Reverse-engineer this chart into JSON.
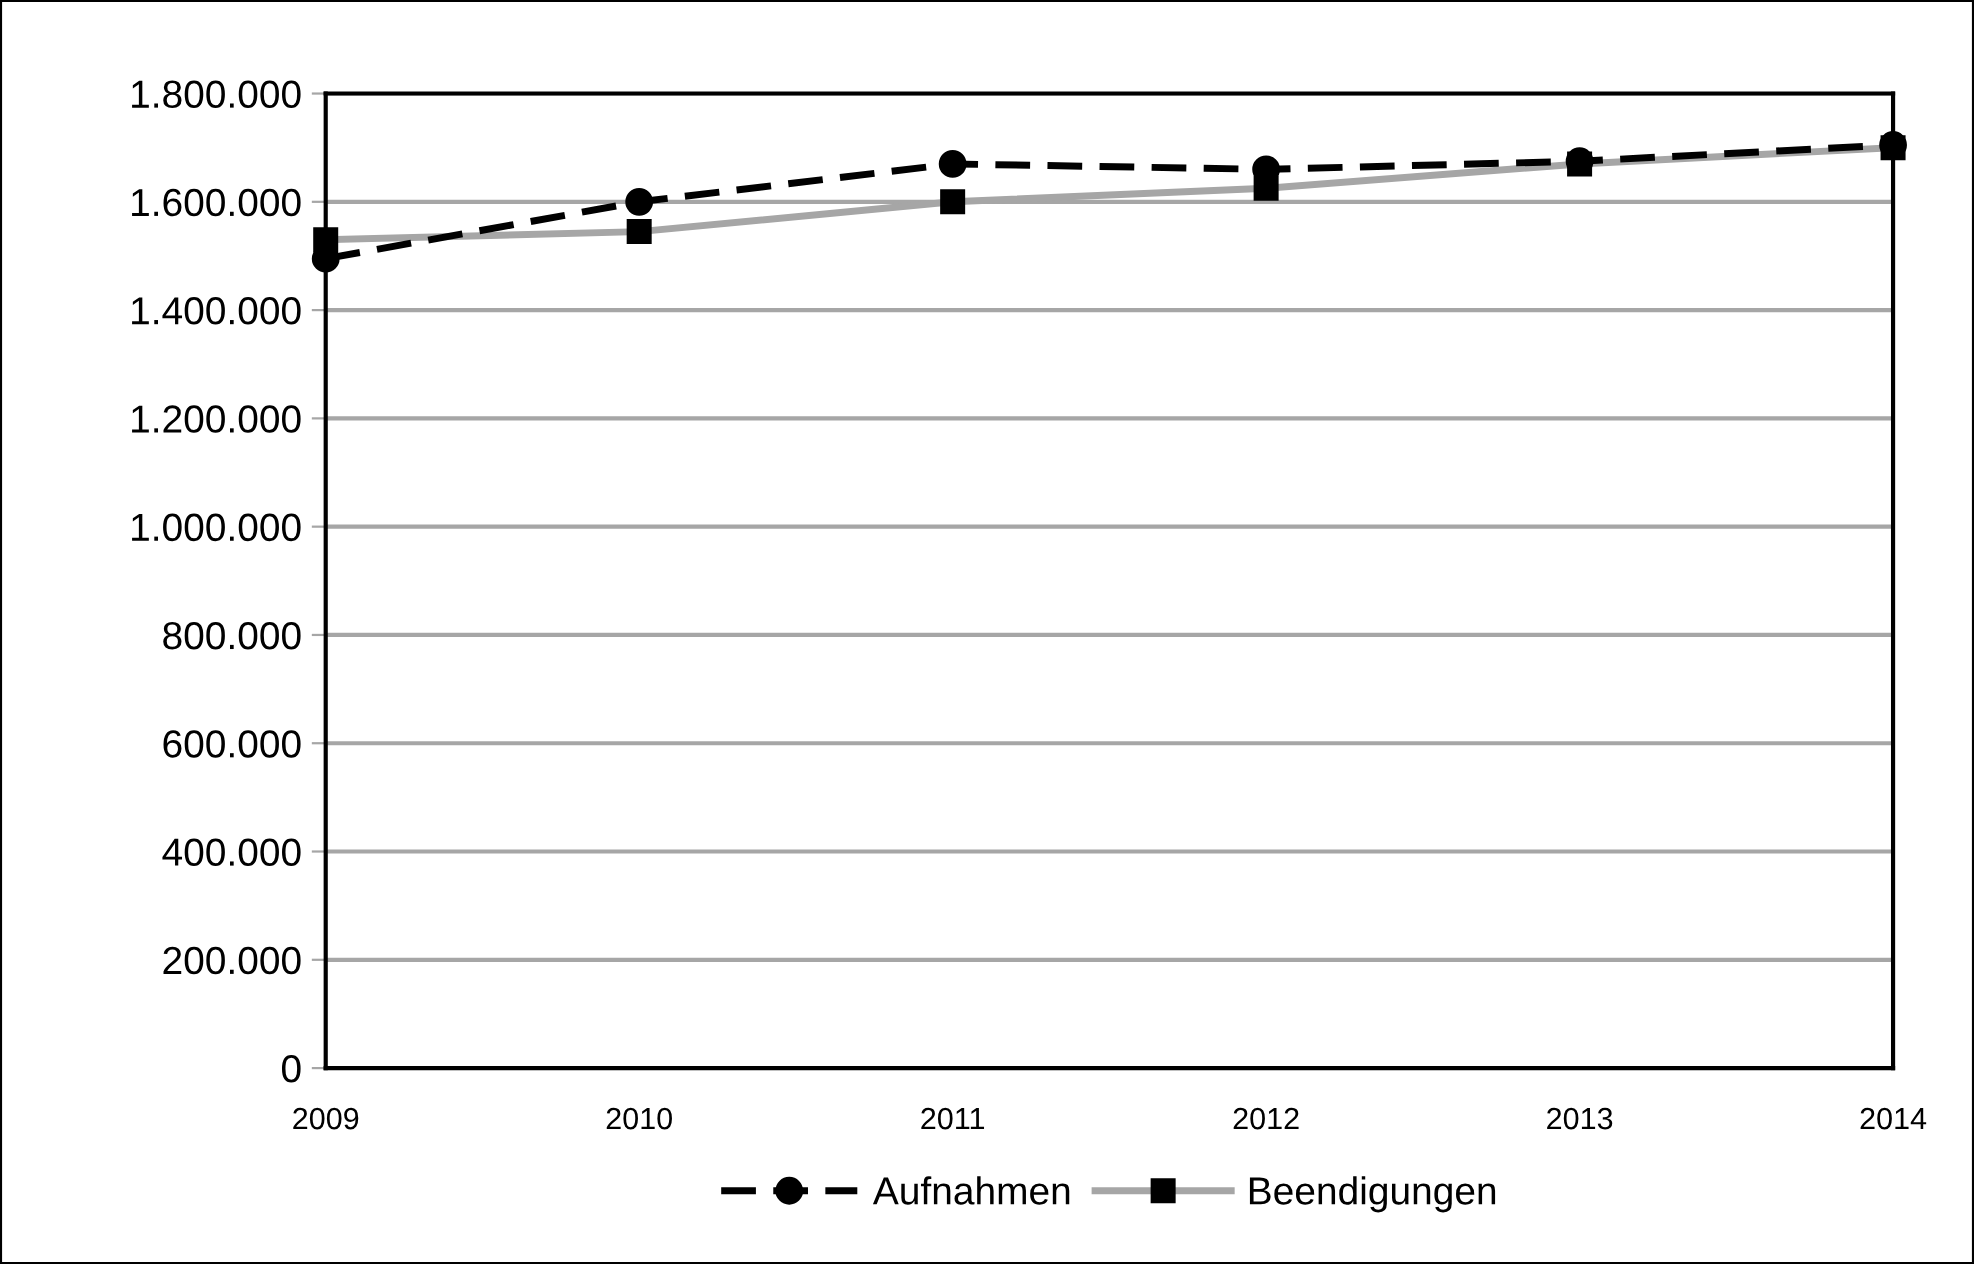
{
  "chart_data": {
    "type": "line",
    "categories": [
      "2009",
      "2010",
      "2011",
      "2012",
      "2013",
      "2014"
    ],
    "series": [
      {
        "name": "Aufnahmen",
        "color": "#000000",
        "line_style": "dashed",
        "marker": "circle",
        "values": [
          1495000,
          1600000,
          1670000,
          1660000,
          1675000,
          1705000
        ]
      },
      {
        "name": "Beendigungen",
        "color": "#a6a6a6",
        "line_style": "solid",
        "marker": "square",
        "values": [
          1530000,
          1545000,
          1600000,
          1625000,
          1670000,
          1700000
        ]
      }
    ],
    "ylim": [
      0,
      1800000
    ],
    "yticks": [
      0,
      {
        "value": 200000,
        "label": "200.000"
      },
      {
        "value": 400000,
        "label": "400.000"
      },
      {
        "value": 600000,
        "label": "600.000"
      },
      {
        "value": 800000,
        "label": "800.000"
      },
      {
        "value": 1000000,
        "label": "1.000.000"
      },
      {
        "value": 1200000,
        "label": "1.200.000"
      },
      {
        "value": 1400000,
        "label": "1.400.000"
      },
      {
        "value": 1600000,
        "label": "1.600.000"
      },
      {
        "value": 1800000,
        "label": "1.800.000"
      }
    ],
    "grid": "y",
    "legend": "bottom"
  }
}
